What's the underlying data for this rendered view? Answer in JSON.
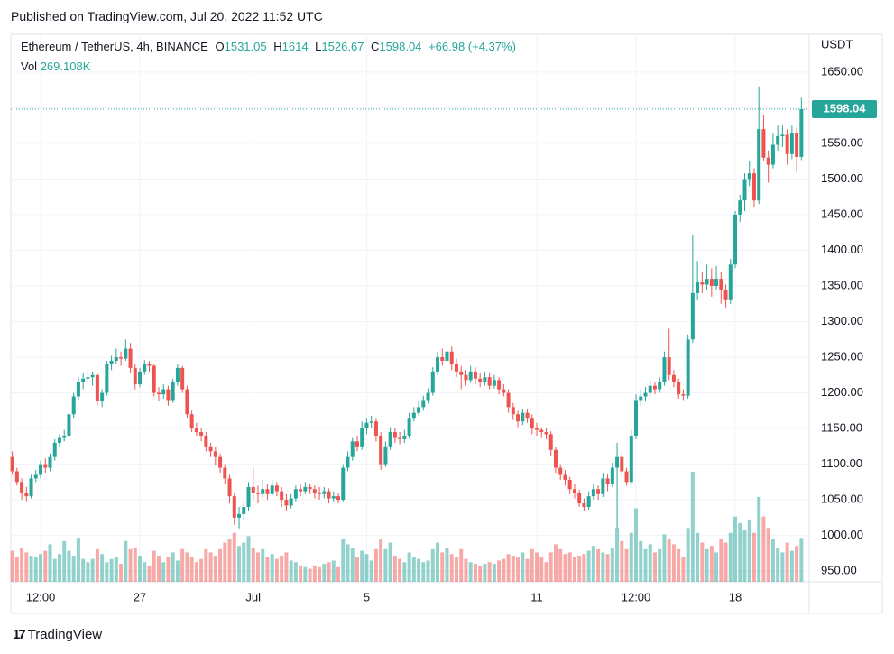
{
  "published": "Published on TradingView.com, Jul 20, 2022 11:52 UTC",
  "brand": "TradingView",
  "chart_data": {
    "type": "candlestick",
    "symbol": "Ethereum / TetherUS, 4h, BINANCE",
    "ohlc_labels": [
      "O",
      "H",
      "L",
      "C"
    ],
    "change": "+66.98 (+4.37%)",
    "volume_name": "Vol",
    "volume_label": "269.108K",
    "currency": "USDT",
    "up_color": "#26a69a",
    "down_color": "#ef5350",
    "ylim": [
      935,
      1703
    ],
    "yticks": [
      {
        "value": 950,
        "label": "950.00"
      },
      {
        "value": 1000,
        "label": "1000.00"
      },
      {
        "value": 1050,
        "label": "1050.00"
      },
      {
        "value": 1100,
        "label": "1100.00"
      },
      {
        "value": 1150,
        "label": "1150.00"
      },
      {
        "value": 1200,
        "label": "1200.00"
      },
      {
        "value": 1250,
        "label": "1250.00"
      },
      {
        "value": 1300,
        "label": "1300.00"
      },
      {
        "value": 1350,
        "label": "1350.00"
      },
      {
        "value": 1400,
        "label": "1400.00"
      },
      {
        "value": 1450,
        "label": "1450.00"
      },
      {
        "value": 1500,
        "label": "1500.00"
      },
      {
        "value": 1550,
        "label": "1550.00"
      },
      {
        "value": 1600,
        "label": "1600.00"
      },
      {
        "value": 1650,
        "label": "1650.00"
      }
    ],
    "grid": true,
    "categories": [
      null,
      null,
      null,
      null,
      null,
      null,
      "12:00",
      null,
      null,
      null,
      null,
      null,
      null,
      null,
      null,
      null,
      null,
      null,
      null,
      null,
      null,
      null,
      null,
      null,
      null,
      null,
      null,
      "27",
      null,
      null,
      null,
      null,
      null,
      null,
      null,
      null,
      null,
      null,
      null,
      null,
      null,
      null,
      null,
      null,
      null,
      null,
      null,
      null,
      null,
      null,
      null,
      "Jul",
      null,
      null,
      null,
      null,
      null,
      null,
      null,
      null,
      null,
      null,
      null,
      null,
      null,
      null,
      null,
      null,
      null,
      null,
      null,
      null,
      null,
      null,
      null,
      "5",
      null,
      null,
      null,
      null,
      null,
      null,
      null,
      null,
      null,
      null,
      null,
      null,
      null,
      null,
      null,
      null,
      null,
      null,
      null,
      null,
      null,
      null,
      null,
      null,
      null,
      null,
      null,
      null,
      null,
      null,
      null,
      null,
      null,
      null,
      null,
      "11",
      null,
      null,
      null,
      null,
      null,
      null,
      null,
      null,
      null,
      null,
      null,
      null,
      null,
      null,
      null,
      null,
      null,
      null,
      null,
      null,
      "12:00",
      null,
      null,
      null,
      null,
      null,
      null,
      null,
      null,
      null,
      null,
      null,
      null,
      null,
      null,
      null,
      null,
      null,
      null,
      null,
      null,
      "18",
      null,
      null,
      null,
      null,
      null,
      null,
      null,
      null,
      null,
      null,
      null,
      null,
      null,
      null
    ],
    "candles": [
      [
        1110,
        1118,
        1085,
        1090,
        190
      ],
      [
        1090,
        1095,
        1070,
        1075,
        150
      ],
      [
        1075,
        1080,
        1050,
        1060,
        210
      ],
      [
        1060,
        1068,
        1048,
        1055,
        180
      ],
      [
        1055,
        1085,
        1052,
        1080,
        160
      ],
      [
        1080,
        1092,
        1075,
        1085,
        150
      ],
      [
        1085,
        1105,
        1080,
        1100,
        170
      ],
      [
        1100,
        1108,
        1088,
        1095,
        190
      ],
      [
        1095,
        1115,
        1090,
        1110,
        230
      ],
      [
        1110,
        1135,
        1105,
        1130,
        140
      ],
      [
        1130,
        1142,
        1125,
        1138,
        170
      ],
      [
        1138,
        1148,
        1132,
        1140,
        250
      ],
      [
        1140,
        1175,
        1136,
        1170,
        190
      ],
      [
        1170,
        1200,
        1165,
        1195,
        160
      ],
      [
        1195,
        1222,
        1190,
        1215,
        270
      ],
      [
        1215,
        1228,
        1205,
        1220,
        140
      ],
      [
        1220,
        1232,
        1212,
        1222,
        120
      ],
      [
        1222,
        1230,
        1210,
        1225,
        140
      ],
      [
        1225,
        1228,
        1182,
        1188,
        200
      ],
      [
        1188,
        1205,
        1180,
        1200,
        170
      ],
      [
        1200,
        1245,
        1196,
        1240,
        120
      ],
      [
        1240,
        1252,
        1232,
        1245,
        140
      ],
      [
        1245,
        1262,
        1240,
        1250,
        150
      ],
      [
        1250,
        1258,
        1238,
        1248,
        110
      ],
      [
        1248,
        1275,
        1245,
        1262,
        250
      ],
      [
        1262,
        1270,
        1228,
        1235,
        200
      ],
      [
        1235,
        1240,
        1205,
        1212,
        210
      ],
      [
        1212,
        1235,
        1208,
        1230,
        160
      ],
      [
        1230,
        1246,
        1225,
        1240,
        120
      ],
      [
        1240,
        1245,
        1230,
        1238,
        100
      ],
      [
        1238,
        1240,
        1195,
        1200,
        190
      ],
      [
        1200,
        1208,
        1188,
        1198,
        160
      ],
      [
        1198,
        1212,
        1192,
        1205,
        120
      ],
      [
        1205,
        1210,
        1182,
        1190,
        150
      ],
      [
        1190,
        1220,
        1186,
        1215,
        180
      ],
      [
        1215,
        1240,
        1210,
        1235,
        130
      ],
      [
        1235,
        1238,
        1200,
        1205,
        200
      ],
      [
        1205,
        1210,
        1165,
        1170,
        180
      ],
      [
        1170,
        1175,
        1145,
        1150,
        150
      ],
      [
        1150,
        1158,
        1140,
        1145,
        120
      ],
      [
        1145,
        1150,
        1132,
        1140,
        140
      ],
      [
        1140,
        1145,
        1118,
        1125,
        200
      ],
      [
        1125,
        1130,
        1110,
        1118,
        180
      ],
      [
        1118,
        1125,
        1098,
        1110,
        160
      ],
      [
        1110,
        1115,
        1088,
        1095,
        200
      ],
      [
        1095,
        1100,
        1072,
        1080,
        240
      ],
      [
        1080,
        1085,
        1045,
        1055,
        260
      ],
      [
        1055,
        1060,
        1015,
        1025,
        300
      ],
      [
        1025,
        1040,
        1010,
        1030,
        220
      ],
      [
        1030,
        1048,
        1020,
        1040,
        240
      ],
      [
        1040,
        1075,
        1035,
        1068,
        280
      ],
      [
        1068,
        1095,
        1050,
        1060,
        210
      ],
      [
        1060,
        1070,
        1045,
        1058,
        180
      ],
      [
        1058,
        1078,
        1052,
        1065,
        200
      ],
      [
        1065,
        1072,
        1050,
        1058,
        150
      ],
      [
        1058,
        1078,
        1055,
        1070,
        170
      ],
      [
        1070,
        1075,
        1055,
        1062,
        140
      ],
      [
        1062,
        1068,
        1040,
        1050,
        160
      ],
      [
        1050,
        1058,
        1035,
        1042,
        180
      ],
      [
        1042,
        1058,
        1038,
        1052,
        130
      ],
      [
        1052,
        1070,
        1048,
        1065,
        120
      ],
      [
        1065,
        1072,
        1055,
        1062,
        100
      ],
      [
        1062,
        1075,
        1058,
        1068,
        90
      ],
      [
        1068,
        1072,
        1058,
        1065,
        80
      ],
      [
        1065,
        1070,
        1052,
        1060,
        100
      ],
      [
        1060,
        1068,
        1050,
        1058,
        90
      ],
      [
        1058,
        1068,
        1052,
        1062,
        110
      ],
      [
        1062,
        1066,
        1045,
        1052,
        120
      ],
      [
        1052,
        1062,
        1048,
        1055,
        130
      ],
      [
        1055,
        1060,
        1045,
        1050,
        90
      ],
      [
        1050,
        1100,
        1048,
        1095,
        260
      ],
      [
        1095,
        1118,
        1090,
        1110,
        230
      ],
      [
        1110,
        1138,
        1105,
        1132,
        210
      ],
      [
        1132,
        1140,
        1118,
        1125,
        150
      ],
      [
        1125,
        1160,
        1120,
        1150,
        190
      ],
      [
        1150,
        1165,
        1142,
        1158,
        170
      ],
      [
        1158,
        1168,
        1150,
        1160,
        130
      ],
      [
        1160,
        1165,
        1132,
        1140,
        200
      ],
      [
        1140,
        1145,
        1092,
        1100,
        260
      ],
      [
        1100,
        1132,
        1096,
        1125,
        200
      ],
      [
        1125,
        1152,
        1120,
        1145,
        240
      ],
      [
        1145,
        1150,
        1130,
        1138,
        160
      ],
      [
        1138,
        1145,
        1128,
        1135,
        140
      ],
      [
        1135,
        1148,
        1130,
        1140,
        120
      ],
      [
        1140,
        1172,
        1136,
        1165,
        180
      ],
      [
        1165,
        1180,
        1160,
        1172,
        150
      ],
      [
        1172,
        1188,
        1168,
        1180,
        140
      ],
      [
        1180,
        1196,
        1175,
        1190,
        120
      ],
      [
        1190,
        1206,
        1185,
        1200,
        130
      ],
      [
        1200,
        1236,
        1196,
        1230,
        200
      ],
      [
        1230,
        1258,
        1225,
        1250,
        240
      ],
      [
        1250,
        1262,
        1238,
        1245,
        180
      ],
      [
        1245,
        1272,
        1240,
        1258,
        210
      ],
      [
        1258,
        1265,
        1232,
        1240,
        170
      ],
      [
        1240,
        1248,
        1222,
        1230,
        150
      ],
      [
        1230,
        1238,
        1205,
        1225,
        200
      ],
      [
        1225,
        1232,
        1210,
        1218,
        140
      ],
      [
        1218,
        1238,
        1214,
        1230,
        120
      ],
      [
        1230,
        1236,
        1212,
        1220,
        110
      ],
      [
        1220,
        1228,
        1208,
        1215,
        100
      ],
      [
        1215,
        1230,
        1210,
        1222,
        110
      ],
      [
        1222,
        1228,
        1205,
        1210,
        120
      ],
      [
        1210,
        1225,
        1206,
        1218,
        110
      ],
      [
        1218,
        1222,
        1198,
        1205,
        130
      ],
      [
        1205,
        1212,
        1195,
        1200,
        140
      ],
      [
        1200,
        1205,
        1172,
        1180,
        170
      ],
      [
        1180,
        1186,
        1162,
        1170,
        160
      ],
      [
        1170,
        1175,
        1152,
        1160,
        150
      ],
      [
        1160,
        1178,
        1155,
        1172,
        180
      ],
      [
        1172,
        1178,
        1158,
        1165,
        140
      ],
      [
        1165,
        1170,
        1142,
        1150,
        200
      ],
      [
        1150,
        1158,
        1140,
        1148,
        180
      ],
      [
        1148,
        1152,
        1138,
        1145,
        150
      ],
      [
        1145,
        1150,
        1135,
        1142,
        120
      ],
      [
        1142,
        1146,
        1112,
        1120,
        180
      ],
      [
        1120,
        1124,
        1088,
        1095,
        230
      ],
      [
        1095,
        1100,
        1078,
        1085,
        200
      ],
      [
        1085,
        1092,
        1070,
        1078,
        170
      ],
      [
        1078,
        1082,
        1058,
        1065,
        180
      ],
      [
        1065,
        1072,
        1052,
        1060,
        150
      ],
      [
        1060,
        1064,
        1040,
        1045,
        160
      ],
      [
        1045,
        1052,
        1035,
        1040,
        170
      ],
      [
        1040,
        1062,
        1036,
        1055,
        190
      ],
      [
        1055,
        1072,
        1050,
        1065,
        220
      ],
      [
        1065,
        1070,
        1050,
        1058,
        200
      ],
      [
        1058,
        1088,
        1054,
        1080,
        180
      ],
      [
        1080,
        1086,
        1062,
        1072,
        170
      ],
      [
        1072,
        1102,
        1068,
        1095,
        210
      ],
      [
        1095,
        1130,
        1010,
        1110,
        330
      ],
      [
        1110,
        1115,
        1082,
        1090,
        250
      ],
      [
        1090,
        1095,
        1070,
        1075,
        200
      ],
      [
        1075,
        1148,
        1072,
        1140,
        300
      ],
      [
        1140,
        1198,
        1135,
        1190,
        450
      ],
      [
        1190,
        1205,
        1182,
        1195,
        250
      ],
      [
        1195,
        1208,
        1188,
        1200,
        200
      ],
      [
        1200,
        1218,
        1195,
        1210,
        230
      ],
      [
        1210,
        1215,
        1198,
        1205,
        180
      ],
      [
        1205,
        1222,
        1200,
        1215,
        200
      ],
      [
        1215,
        1258,
        1210,
        1250,
        290
      ],
      [
        1250,
        1290,
        1218,
        1225,
        260
      ],
      [
        1225,
        1232,
        1208,
        1215,
        230
      ],
      [
        1215,
        1220,
        1192,
        1198,
        200
      ],
      [
        1198,
        1205,
        1190,
        1196,
        150
      ],
      [
        1196,
        1282,
        1192,
        1275,
        330
      ],
      [
        1275,
        1422,
        1270,
        1340,
        674
      ],
      [
        1340,
        1385,
        1330,
        1355,
        300
      ],
      [
        1355,
        1370,
        1340,
        1352,
        240
      ],
      [
        1352,
        1380,
        1345,
        1360,
        200
      ],
      [
        1360,
        1375,
        1335,
        1350,
        220
      ],
      [
        1350,
        1378,
        1345,
        1360,
        180
      ],
      [
        1360,
        1370,
        1325,
        1345,
        260
      ],
      [
        1345,
        1352,
        1320,
        1330,
        240
      ],
      [
        1330,
        1388,
        1325,
        1380,
        300
      ],
      [
        1380,
        1455,
        1375,
        1450,
        400
      ],
      [
        1450,
        1478,
        1440,
        1470,
        360
      ],
      [
        1470,
        1508,
        1455,
        1500,
        320
      ],
      [
        1500,
        1525,
        1490,
        1508,
        380
      ],
      [
        1508,
        1515,
        1460,
        1470,
        300
      ],
      [
        1470,
        1630,
        1465,
        1570,
        520
      ],
      [
        1570,
        1590,
        1525,
        1530,
        400
      ],
      [
        1530,
        1540,
        1495,
        1520,
        330
      ],
      [
        1520,
        1565,
        1515,
        1548,
        260
      ],
      [
        1548,
        1575,
        1540,
        1560,
        210
      ],
      [
        1560,
        1575,
        1545,
        1562,
        180
      ],
      [
        1562,
        1570,
        1520,
        1535,
        240
      ],
      [
        1535,
        1575,
        1528,
        1565,
        190
      ],
      [
        1565,
        1572,
        1510,
        1531.05,
        220
      ],
      [
        1531.05,
        1614,
        1526.67,
        1598.04,
        269.108
      ]
    ]
  }
}
